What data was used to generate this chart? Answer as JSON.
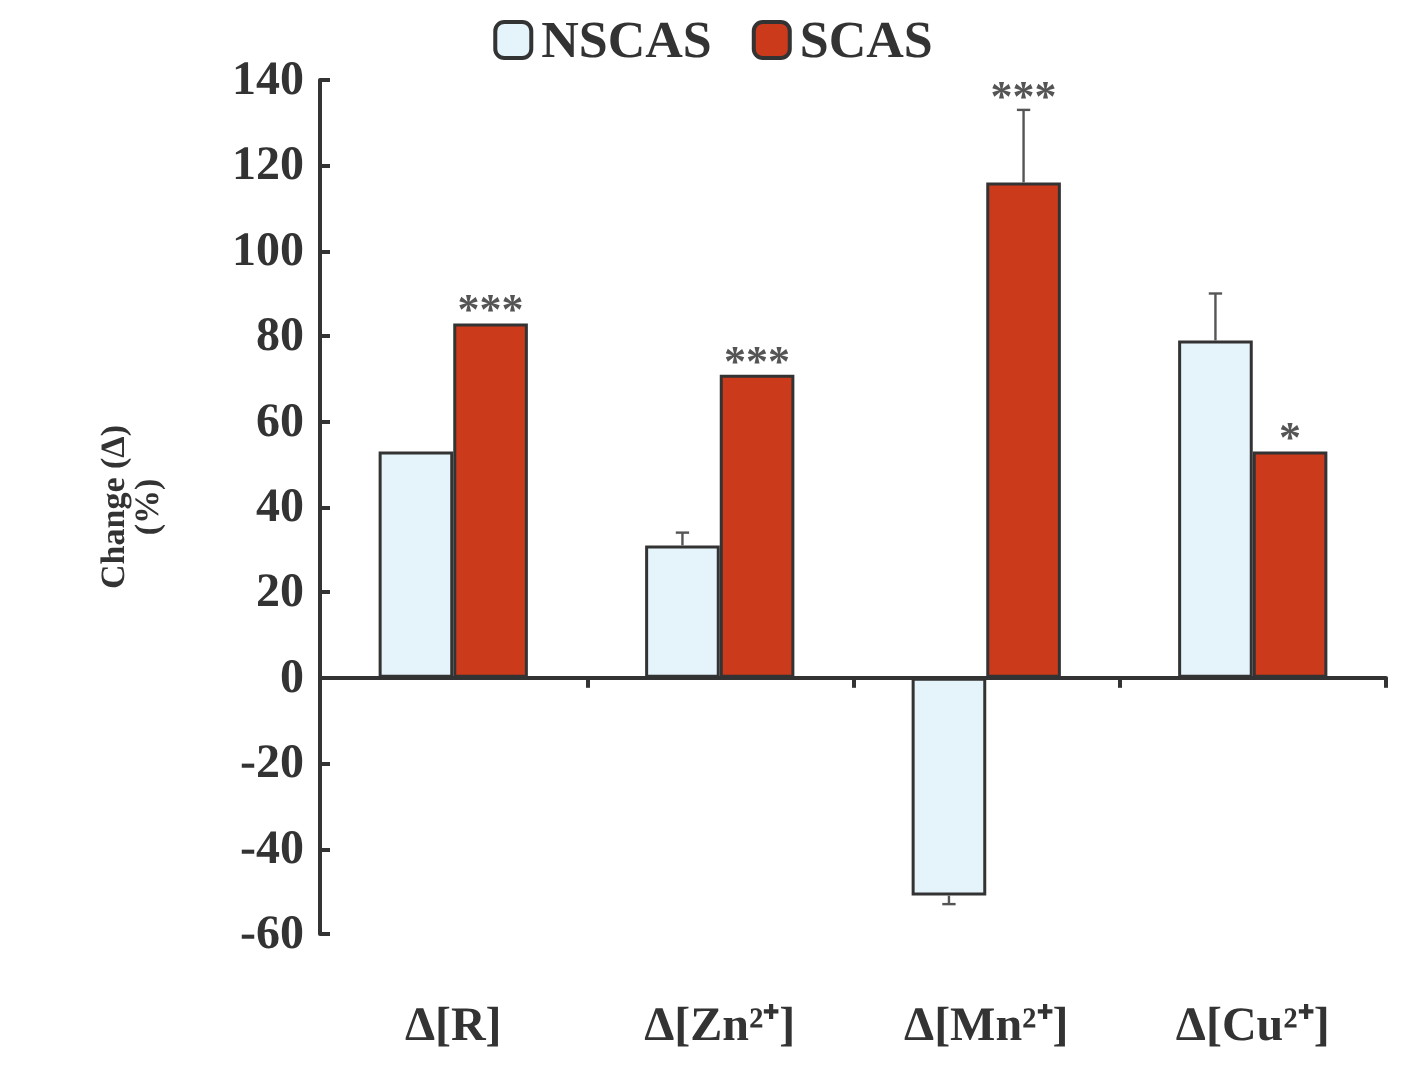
{
  "chart_data": {
    "type": "bar",
    "ylabel": "Change (Δ)\n(%)",
    "categories": [
      "Δ[R]",
      "Δ[Zn²⁺]",
      "Δ[Mn²⁺]",
      "Δ[Cu²⁺]"
    ],
    "series": [
      {
        "name": "NSCAS",
        "color": "#e4f4fa",
        "values": [
          53,
          31,
          -51,
          79
        ],
        "errors": [
          null,
          3,
          2,
          11
        ]
      },
      {
        "name": "SCAS",
        "color": "#cc3a1c",
        "values": [
          83,
          71,
          116,
          53
        ],
        "errors": [
          null,
          null,
          17,
          null
        ]
      }
    ],
    "ylim": [
      -60,
      140
    ],
    "yticks": [
      -60,
      -40,
      -20,
      0,
      20,
      40,
      60,
      80,
      100,
      120,
      140
    ],
    "legend": "top",
    "annotations": [
      {
        "text": "***",
        "x": "Δ[R]",
        "y": 83
      },
      {
        "text": "***",
        "x": "Δ[Zn²⁺]",
        "y": 71
      },
      {
        "text": "***",
        "x": "Δ[Mn²⁺]",
        "y": 116
      },
      {
        "text": "*",
        "x": "Δ[Cu²⁺]",
        "y": 53
      }
    ]
  }
}
